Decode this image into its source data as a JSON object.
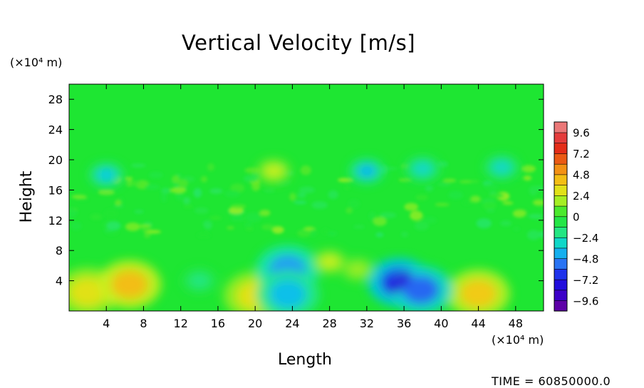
{
  "chart_data": {
    "type": "heatmap",
    "title": "Vertical Velocity [m/s]",
    "xlabel": "Length",
    "ylabel": "Height",
    "x_unit": "(×10⁴ m)",
    "y_unit": "(×10⁴ m)",
    "xlim": [
      0,
      51
    ],
    "ylim": [
      0,
      30
    ],
    "x_ticks": [
      4,
      8,
      12,
      16,
      20,
      24,
      28,
      32,
      36,
      40,
      44,
      48
    ],
    "y_ticks": [
      4,
      8,
      12,
      16,
      20,
      24,
      28
    ],
    "colorbar": {
      "min": -10.8,
      "max": 10.8,
      "step": 1.2,
      "tick_labels": [
        "9.6",
        "7.2",
        "4.8",
        "2.4",
        "0",
        "−2.4",
        "−4.8",
        "−7.2",
        "−9.6"
      ],
      "tick_values": [
        9.6,
        7.2,
        4.8,
        2.4,
        0,
        -2.4,
        -4.8,
        -7.2,
        -9.6
      ]
    },
    "background_value": 0,
    "features": [
      {
        "x": 2,
        "y": 2.5,
        "value": 3.0
      },
      {
        "x": 6.5,
        "y": 3.5,
        "value": 4.2
      },
      {
        "x": 20,
        "y": 2,
        "value": 3.0
      },
      {
        "x": 44,
        "y": 2.3,
        "value": 3.8
      },
      {
        "x": 23.5,
        "y": 5.5,
        "value": -4.6
      },
      {
        "x": 23.5,
        "y": 2.2,
        "value": -3.8
      },
      {
        "x": 35.5,
        "y": 3.8,
        "value": -6.8
      },
      {
        "x": 37.8,
        "y": 2.8,
        "value": -5.6
      },
      {
        "x": 14,
        "y": 4,
        "value": -1.8
      },
      {
        "x": 28,
        "y": 6.5,
        "value": 2.2
      },
      {
        "x": 31,
        "y": 5.5,
        "value": 1.6
      },
      {
        "x": 4,
        "y": 18,
        "value": -3.5
      },
      {
        "x": 32,
        "y": 18.5,
        "value": -4.0
      },
      {
        "x": 38,
        "y": 18.8,
        "value": -3.0
      },
      {
        "x": 46.5,
        "y": 19,
        "value": -3.0
      },
      {
        "x": 22,
        "y": 18.5,
        "value": 2.2
      }
    ]
  },
  "time": {
    "label": "TIME",
    "value": "60850000.0"
  }
}
